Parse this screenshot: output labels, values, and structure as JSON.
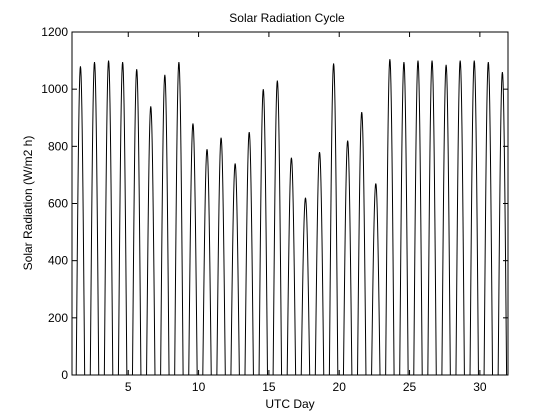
{
  "chart_data": {
    "type": "line",
    "title": "Solar Radiation Cycle",
    "xlabel": "UTC Day",
    "ylabel": "Solar Radiation (W/m2 h)",
    "xlim": [
      1,
      32
    ],
    "ylim": [
      0,
      1200
    ],
    "xticks": [
      5,
      10,
      15,
      20,
      25,
      30
    ],
    "yticks": [
      0,
      200,
      400,
      600,
      800,
      1000,
      1200
    ],
    "grid": false,
    "legend": "none",
    "line_color": "#000000",
    "series": [
      {
        "daily_peaks": [
          {
            "day": 1.6,
            "value": 1080
          },
          {
            "day": 2.6,
            "value": 1095
          },
          {
            "day": 3.6,
            "value": 1100
          },
          {
            "day": 4.6,
            "value": 1095
          },
          {
            "day": 5.6,
            "value": 1070
          },
          {
            "day": 6.6,
            "value": 940
          },
          {
            "day": 7.6,
            "value": 1050
          },
          {
            "day": 8.6,
            "value": 1095
          },
          {
            "day": 9.6,
            "value": 880
          },
          {
            "day": 10.6,
            "value": 790
          },
          {
            "day": 11.6,
            "value": 830
          },
          {
            "day": 12.6,
            "value": 740
          },
          {
            "day": 13.6,
            "value": 850
          },
          {
            "day": 14.6,
            "value": 1000
          },
          {
            "day": 15.6,
            "value": 1030
          },
          {
            "day": 16.6,
            "value": 760
          },
          {
            "day": 17.6,
            "value": 620
          },
          {
            "day": 18.6,
            "value": 780
          },
          {
            "day": 19.6,
            "value": 1090
          },
          {
            "day": 20.6,
            "value": 820
          },
          {
            "day": 21.6,
            "value": 920
          },
          {
            "day": 22.6,
            "value": 670
          },
          {
            "day": 23.6,
            "value": 1105
          },
          {
            "day": 24.6,
            "value": 1095
          },
          {
            "day": 25.6,
            "value": 1100
          },
          {
            "day": 26.6,
            "value": 1100
          },
          {
            "day": 27.6,
            "value": 1085
          },
          {
            "day": 28.6,
            "value": 1100
          },
          {
            "day": 29.6,
            "value": 1100
          },
          {
            "day": 30.6,
            "value": 1095
          },
          {
            "day": 31.6,
            "value": 1060
          }
        ]
      }
    ]
  }
}
